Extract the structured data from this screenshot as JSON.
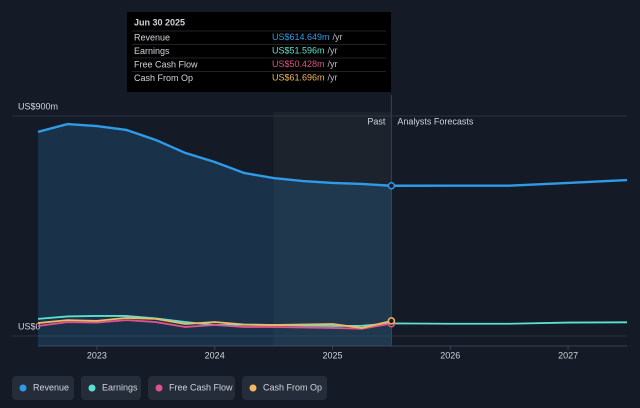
{
  "chart_data": {
    "type": "line",
    "x": [
      2022.5,
      2022.75,
      2023,
      2023.25,
      2023.5,
      2023.75,
      2024,
      2024.25,
      2024.5,
      2024.75,
      2025,
      2025.25,
      2025.5,
      2026,
      2026.5,
      2027,
      2027.5
    ],
    "series": [
      {
        "name": "Revenue",
        "color": "#2e9be8",
        "values": [
          835,
          867,
          859,
          843,
          802,
          749,
          712,
          667,
          646,
          634,
          626,
          622,
          614.649,
          615,
          615,
          626,
          638
        ]
      },
      {
        "name": "Earnings",
        "color": "#5ee0d0",
        "values": [
          70,
          80,
          82,
          82,
          72,
          57,
          45,
          46,
          45,
          43,
          41,
          42,
          51.596,
          50,
          50,
          55,
          56
        ]
      },
      {
        "name": "Free Cash Flow",
        "color": "#e0528a",
        "values": [
          41,
          57,
          55,
          65,
          57,
          37,
          45,
          37,
          37,
          35,
          33,
          30,
          50.428,
          null,
          null,
          null,
          null
        ]
      },
      {
        "name": "Cash From Op",
        "color": "#f0b860",
        "values": [
          53,
          65,
          62,
          74,
          70,
          49,
          57,
          47,
          45,
          47,
          49,
          33,
          61.696,
          null,
          null,
          null,
          null
        ]
      }
    ],
    "xlim": [
      2022.5,
      2027.5
    ],
    "xticks": [
      2023,
      2024,
      2025,
      2026,
      2027
    ],
    "ylim": [
      0,
      900
    ],
    "yticks": [
      {
        "value": 0,
        "label": "US$0"
      },
      {
        "value": 900,
        "label": "US$900m"
      }
    ],
    "grid": true,
    "annotations": {
      "past": "Past",
      "forecast": "Analysts Forecasts"
    },
    "tooltip": {
      "date": "Jun 30 2025",
      "rows": [
        {
          "label": "Revenue",
          "value": "US$614.649m",
          "unit": "/yr"
        },
        {
          "label": "Earnings",
          "value": "US$51.596m",
          "unit": "/yr"
        },
        {
          "label": "Free Cash Flow",
          "value": "US$50.428m",
          "unit": "/yr"
        },
        {
          "label": "Cash From Op",
          "value": "US$61.696m",
          "unit": "/yr"
        }
      ]
    }
  }
}
